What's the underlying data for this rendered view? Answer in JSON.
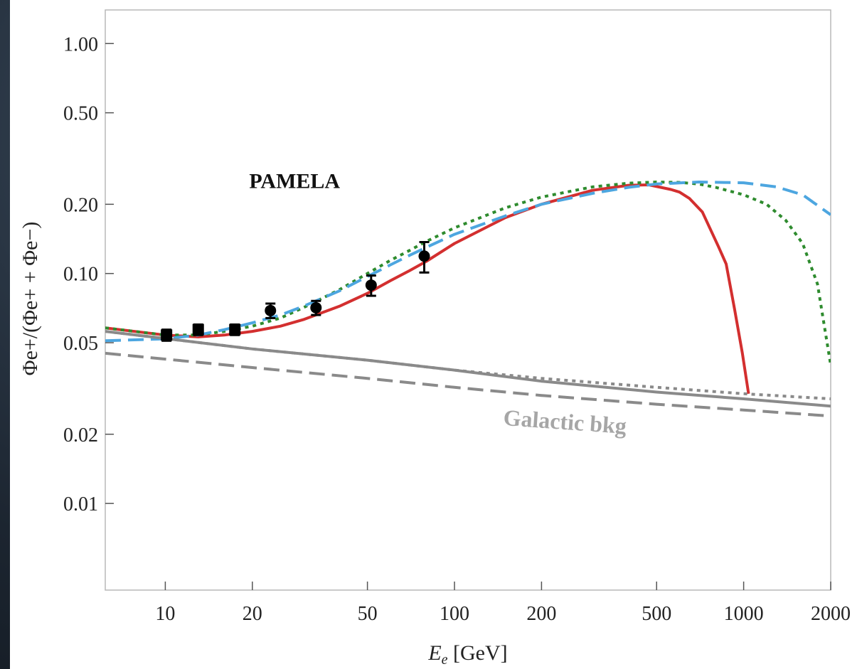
{
  "chart_data": {
    "type": "line",
    "xscale": "log",
    "yscale": "log",
    "xlim": [
      6.2,
      2000
    ],
    "ylim": [
      0.0042,
      1.4
    ],
    "xlabel_main": "E",
    "xlabel_sub": "e",
    "xlabel_unit": " [GeV]",
    "ylabel": "Φe+/(Φe+ + Φe−)",
    "x_ticks": [
      {
        "value": 10,
        "label": "10"
      },
      {
        "value": 20,
        "label": "20"
      },
      {
        "value": 50,
        "label": "50"
      },
      {
        "value": 100,
        "label": "100"
      },
      {
        "value": 200,
        "label": "200"
      },
      {
        "value": 500,
        "label": "500"
      },
      {
        "value": 1000,
        "label": "1000"
      },
      {
        "value": 2000,
        "label": "2000"
      }
    ],
    "y_ticks": [
      {
        "value": 0.01,
        "label": "0.01"
      },
      {
        "value": 0.02,
        "label": "0.02"
      },
      {
        "value": 0.05,
        "label": "0.05"
      },
      {
        "value": 0.1,
        "label": "0.10"
      },
      {
        "value": 0.2,
        "label": "0.20"
      },
      {
        "value": 0.5,
        "label": "0.50"
      },
      {
        "value": 1.0,
        "label": "1.00"
      }
    ],
    "annotations": [
      {
        "text": "PAMELA",
        "x": 28,
        "y": 0.235,
        "style": "pamela"
      },
      {
        "text": "Galactic bkg",
        "x": 240,
        "y": 0.021,
        "style": "bkg",
        "rotate": 4
      }
    ],
    "series": [
      {
        "style": "solid",
        "color": "#d32f2f",
        "width": 4,
        "points": [
          [
            6.2,
            0.058
          ],
          [
            10,
            0.054
          ],
          [
            13,
            0.053
          ],
          [
            16,
            0.054
          ],
          [
            20,
            0.056
          ],
          [
            25,
            0.059
          ],
          [
            30,
            0.063
          ],
          [
            40,
            0.072
          ],
          [
            50,
            0.082
          ],
          [
            60,
            0.093
          ],
          [
            70,
            0.103
          ],
          [
            80,
            0.113
          ],
          [
            100,
            0.135
          ],
          [
            150,
            0.175
          ],
          [
            200,
            0.2
          ],
          [
            300,
            0.23
          ],
          [
            400,
            0.242
          ],
          [
            470,
            0.243
          ],
          [
            560,
            0.232
          ],
          [
            600,
            0.226
          ],
          [
            650,
            0.212
          ],
          [
            720,
            0.185
          ],
          [
            820,
            0.13
          ],
          [
            870,
            0.11
          ],
          [
            930,
            0.07
          ],
          [
            990,
            0.045
          ],
          [
            1040,
            0.03
          ]
        ]
      },
      {
        "style": "dotted",
        "color": "#2e8b2e",
        "width": 4,
        "points": [
          [
            6.2,
            0.058
          ],
          [
            10,
            0.054
          ],
          [
            13,
            0.054
          ],
          [
            16,
            0.056
          ],
          [
            20,
            0.059
          ],
          [
            25,
            0.064
          ],
          [
            30,
            0.071
          ],
          [
            40,
            0.085
          ],
          [
            50,
            0.1
          ],
          [
            60,
            0.114
          ],
          [
            70,
            0.126
          ],
          [
            80,
            0.138
          ],
          [
            100,
            0.158
          ],
          [
            150,
            0.193
          ],
          [
            200,
            0.215
          ],
          [
            300,
            0.238
          ],
          [
            400,
            0.247
          ],
          [
            500,
            0.25
          ],
          [
            600,
            0.249
          ],
          [
            700,
            0.245
          ],
          [
            800,
            0.237
          ],
          [
            1000,
            0.22
          ],
          [
            1200,
            0.2
          ],
          [
            1400,
            0.17
          ],
          [
            1600,
            0.135
          ],
          [
            1800,
            0.09
          ],
          [
            2000,
            0.04
          ]
        ]
      },
      {
        "style": "dashed",
        "color": "#4da6e0",
        "width": 4,
        "points": [
          [
            6.2,
            0.051
          ],
          [
            10,
            0.052
          ],
          [
            13,
            0.054
          ],
          [
            16,
            0.057
          ],
          [
            20,
            0.061
          ],
          [
            25,
            0.066
          ],
          [
            30,
            0.072
          ],
          [
            40,
            0.084
          ],
          [
            50,
            0.097
          ],
          [
            60,
            0.109
          ],
          [
            70,
            0.12
          ],
          [
            80,
            0.13
          ],
          [
            100,
            0.148
          ],
          [
            150,
            0.178
          ],
          [
            200,
            0.2
          ],
          [
            300,
            0.223
          ],
          [
            400,
            0.237
          ],
          [
            500,
            0.245
          ],
          [
            700,
            0.25
          ],
          [
            1000,
            0.248
          ],
          [
            1300,
            0.238
          ],
          [
            1600,
            0.22
          ],
          [
            2000,
            0.18
          ]
        ]
      },
      {
        "style": "dotted",
        "color": "#8a8a8a",
        "width": 4,
        "points": [
          [
            6.2,
            0.056
          ],
          [
            20,
            0.047
          ],
          [
            50,
            0.042
          ],
          [
            100,
            0.038
          ],
          [
            200,
            0.035
          ],
          [
            500,
            0.032
          ],
          [
            1000,
            0.03
          ],
          [
            2000,
            0.0285
          ]
        ]
      },
      {
        "style": "solid",
        "color": "#8a8a8a",
        "width": 4,
        "points": [
          [
            6.2,
            0.056
          ],
          [
            20,
            0.047
          ],
          [
            50,
            0.042
          ],
          [
            100,
            0.038
          ],
          [
            200,
            0.034
          ],
          [
            500,
            0.0305
          ],
          [
            1000,
            0.0285
          ],
          [
            2000,
            0.0265
          ]
        ]
      },
      {
        "style": "dashed",
        "color": "#8a8a8a",
        "width": 4,
        "points": [
          [
            6.2,
            0.045
          ],
          [
            20,
            0.039
          ],
          [
            50,
            0.035
          ],
          [
            100,
            0.032
          ],
          [
            200,
            0.0295
          ],
          [
            500,
            0.027
          ],
          [
            1000,
            0.0255
          ],
          [
            2000,
            0.024
          ]
        ]
      }
    ],
    "data_points": [
      {
        "x": 10.1,
        "y": 0.054,
        "err": 0.003,
        "marker": "square"
      },
      {
        "x": 13.0,
        "y": 0.057,
        "err": 0.003,
        "marker": "square"
      },
      {
        "x": 17.4,
        "y": 0.057,
        "err": 0.003,
        "marker": "square"
      },
      {
        "x": 23.1,
        "y": 0.069,
        "err": 0.005,
        "marker": "circle"
      },
      {
        "x": 33.2,
        "y": 0.071,
        "err": 0.005,
        "marker": "circle"
      },
      {
        "x": 51.5,
        "y": 0.089,
        "err": 0.009,
        "marker": "circle"
      },
      {
        "x": 78.6,
        "y": 0.119,
        "err": 0.018,
        "marker": "circle"
      }
    ]
  }
}
